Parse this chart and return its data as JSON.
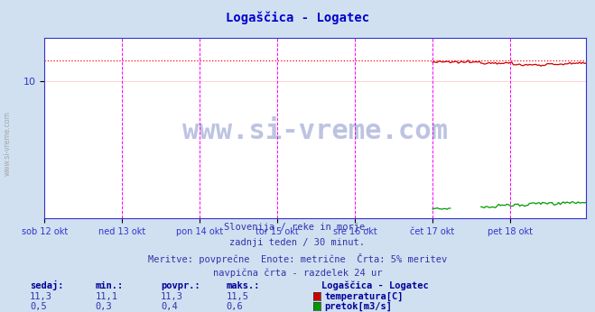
{
  "title": "Logaščica - Logatec",
  "title_color": "#0000cc",
  "bg_color": "#d0e0f0",
  "plot_bg_color": "#ffffff",
  "fig_width": 6.59,
  "fig_height": 3.46,
  "dpi": 100,
  "n_points": 336,
  "xlim": [
    0,
    335
  ],
  "ylim": [
    0,
    13.2
  ],
  "ytick_val": 10,
  "x_day_labels": [
    "sob 12 okt",
    "ned 13 okt",
    "pon 14 okt",
    "tor 15 okt",
    "sre 16 okt",
    "čet 17 okt",
    "pet 18 okt"
  ],
  "x_day_positions": [
    0,
    48,
    96,
    144,
    192,
    240,
    288
  ],
  "day_vline_color": "#ff00ff",
  "day_vline_style": "--",
  "hgrid_color": "#ffcccc",
  "vgrid_color": "#ffcccc",
  "dotted_line_value": 11.5,
  "dotted_line_color": "#ff0000",
  "dotted_line_style": ":",
  "temp_color": "#cc0000",
  "flow_color": "#009900",
  "axis_color": "#3333cc",
  "tick_color": "#3333cc",
  "watermark_text": "www.si-vreme.com",
  "watermark_color": "#4455aa",
  "watermark_alpha": 0.35,
  "watermark_fontsize": 22,
  "subtitle_lines": [
    "Slovenija / reke in morje.",
    "zadnji teden / 30 minut.",
    "Meritve: povprečne  Enote: metrične  Črta: 5% meritev",
    "navpična črta - razdelek 24 ur"
  ],
  "subtitle_color": "#3333aa",
  "subtitle_fontsize": 7.5,
  "table_headers": [
    "sedaj:",
    "min.:",
    "povpr.:",
    "maks.:"
  ],
  "table_header_color": "#000099",
  "table_values_temp": [
    "11,3",
    "11,1",
    "11,3",
    "11,5"
  ],
  "table_values_flow": [
    "0,5",
    "0,3",
    "0,4",
    "0,6"
  ],
  "legend_title": "Logaščica - Logatec",
  "legend_entries": [
    "temperatura[C]",
    "pretok[m3/s]"
  ],
  "legend_colors": [
    "#cc0000",
    "#009900"
  ],
  "flow_scale": 22.0
}
